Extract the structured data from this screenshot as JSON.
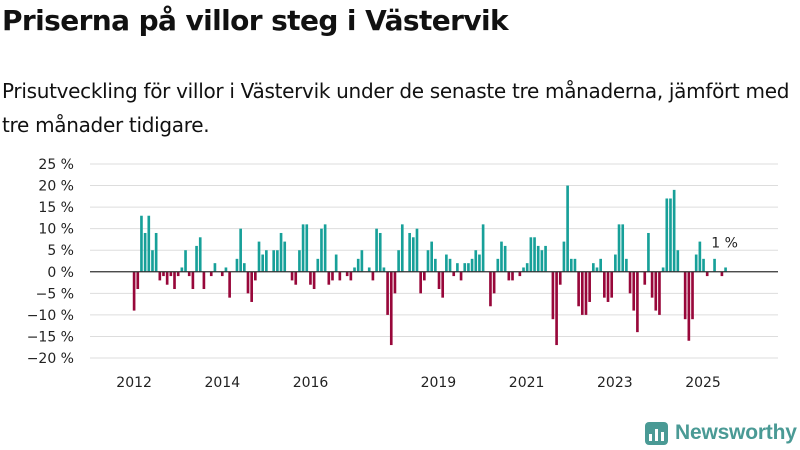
{
  "header": {
    "title": "Priserna på villor steg i Västervik",
    "subtitle": "Prisutveckling för villor i Västervik under de senaste tre månaderna, jämfört med tre månader tidigare."
  },
  "brand": {
    "name": "Newsworthy",
    "color": "#4a9a95"
  },
  "colors": {
    "positive": "#17a099",
    "negative": "#98073a",
    "zero_line": "#333333",
    "grid": "#dddddd"
  },
  "chart_data": {
    "type": "bar",
    "title": "Priserna på villor steg i Västervik",
    "xlabel": "",
    "ylabel": "",
    "ylim": [
      -20,
      25
    ],
    "yticks": [
      25,
      20,
      15,
      10,
      5,
      0,
      -5,
      -10,
      -15,
      -20
    ],
    "ytick_labels": [
      "25 %",
      "20 %",
      "15 %",
      "10 %",
      "5 %",
      "0 %",
      "−5 %",
      "−10 %",
      "−15 %",
      "−20 %"
    ],
    "x_range": [
      2011.0,
      2026.6
    ],
    "xticks": [
      {
        "label": "2012",
        "value": 2012.0
      },
      {
        "label": "2014",
        "value": 2014.0
      },
      {
        "label": "2016",
        "value": 2016.0
      },
      {
        "label": "2019",
        "value": 2018.9
      },
      {
        "label": "2021",
        "value": 2020.9
      },
      {
        "label": "2023",
        "value": 2022.9
      },
      {
        "label": "2025",
        "value": 2024.9
      }
    ],
    "start_year": 2012.0,
    "step_years": 0.0833,
    "values": [
      -9,
      -4,
      13,
      9,
      13,
      5,
      9,
      -2,
      -1,
      -3,
      -1,
      -4,
      -1,
      1,
      5,
      -1,
      -4,
      6,
      8,
      -4,
      0,
      -1,
      2,
      0,
      -1,
      1,
      -6,
      0,
      3,
      10,
      2,
      -5,
      -7,
      -2,
      7,
      4,
      5,
      0,
      5,
      5,
      9,
      7,
      0,
      -2,
      -3,
      5,
      11,
      11,
      -3,
      -4,
      3,
      10,
      11,
      -3,
      -2,
      4,
      -2,
      0,
      -1,
      -2,
      1,
      3,
      5,
      0,
      1,
      -2,
      10,
      9,
      1,
      -10,
      -17,
      -5,
      5,
      11,
      0,
      9,
      8,
      10,
      -5,
      -2,
      5,
      7,
      3,
      -4,
      -6,
      4,
      3,
      -1,
      2,
      -2,
      2,
      2,
      3,
      5,
      4,
      11,
      0,
      -8,
      -5,
      3,
      7,
      6,
      -2,
      -2,
      0,
      -1,
      1,
      2,
      8,
      8,
      6,
      5,
      6,
      0,
      -11,
      -17,
      -3,
      7,
      20,
      3,
      3,
      -8,
      -10,
      -10,
      -7,
      2,
      1,
      3,
      -6,
      -7,
      -6,
      4,
      11,
      11,
      3,
      -5,
      -9,
      -14,
      0,
      -3,
      9,
      -6,
      -9,
      -10,
      1,
      17,
      17,
      19,
      5,
      0,
      -11,
      -16,
      -11,
      4,
      7,
      3,
      -1,
      0,
      3,
      0,
      -1,
      1
    ],
    "annotations": [
      {
        "label": "1 %",
        "value": 1
      }
    ]
  }
}
